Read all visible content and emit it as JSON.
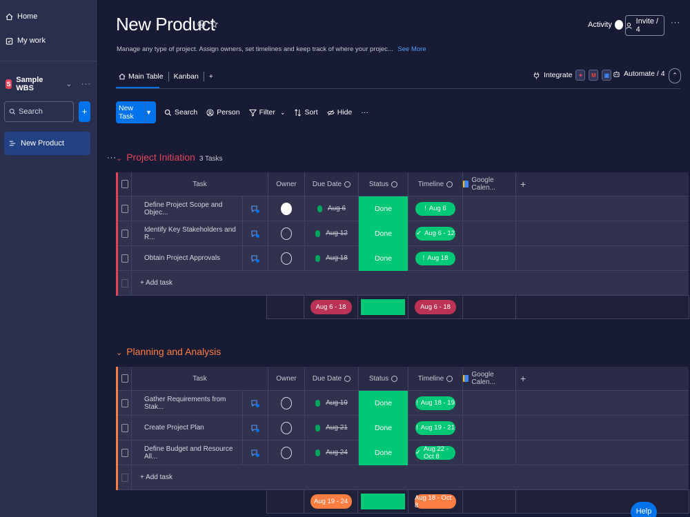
{
  "sidebar": {
    "home_label": "Home",
    "mywork_label": "My work",
    "workspace": {
      "badge": "S",
      "name": "Sample WBS"
    },
    "search_label": "Search",
    "add_label": "+",
    "boards": [
      {
        "label": "New Product"
      }
    ]
  },
  "header": {
    "title": "New Product",
    "description": "Manage any type of project. Assign owners, set timelines and keep track of where your projec...",
    "see_more": "See More",
    "activity_label": "Activity",
    "invite_label": "Invite / 4",
    "tabs": [
      {
        "label": "Main Table"
      },
      {
        "label": "Kanban"
      }
    ],
    "add_tab": "+",
    "integrate_label": "Integrate",
    "automate_label": "Automate / 4"
  },
  "toolbar": {
    "new_task": "New Task",
    "search": "Search",
    "person": "Person",
    "filter": "Filter",
    "sort": "Sort",
    "hide": "Hide"
  },
  "columns": {
    "task": "Task",
    "owner": "Owner",
    "due_date": "Due Date",
    "status": "Status",
    "timeline": "Timeline",
    "gcal": "Google Calen..."
  },
  "groups": [
    {
      "name": "Project Initiation",
      "count": "3 Tasks",
      "color": "#e2445c",
      "rows": [
        {
          "task": "Define Project Scope and Objec...",
          "due": "Aug 6",
          "status": "Done",
          "timeline": "Aug 6",
          "timeline_icon": "!"
        },
        {
          "task": "Identify Key Stakeholders and R...",
          "due": "Aug 12",
          "status": "Done",
          "timeline": "Aug 6 - 12",
          "timeline_icon": "✓"
        },
        {
          "task": "Obtain Project Approvals",
          "due": "Aug 18",
          "status": "Done",
          "timeline": "Aug 18",
          "timeline_icon": "!"
        }
      ],
      "add_task": "+ Add task",
      "summary_due": "Aug 6 - 18",
      "summary_timeline": "Aug 6 - 18"
    },
    {
      "name": "Planning and Analysis",
      "count": "",
      "color": "#fd7e43",
      "rows": [
        {
          "task": "Gather Requirements from Stak...",
          "due": "Aug 19",
          "status": "Done",
          "timeline": "Aug 18 - 19",
          "timeline_icon": "!"
        },
        {
          "task": "Create Project Plan",
          "due": "Aug 21",
          "status": "Done",
          "timeline": "Aug 19 - 21",
          "timeline_icon": "!"
        },
        {
          "task": "Define Budget and Resource All...",
          "due": "Aug 24",
          "status": "Done",
          "timeline": "Aug 22 - Oct 8",
          "timeline_icon": "✓"
        }
      ],
      "add_task": "+ Add task",
      "summary_due": "Aug 19 - 24",
      "summary_timeline": "Aug 18 - Oct 8"
    }
  ],
  "help_label": "Help"
}
